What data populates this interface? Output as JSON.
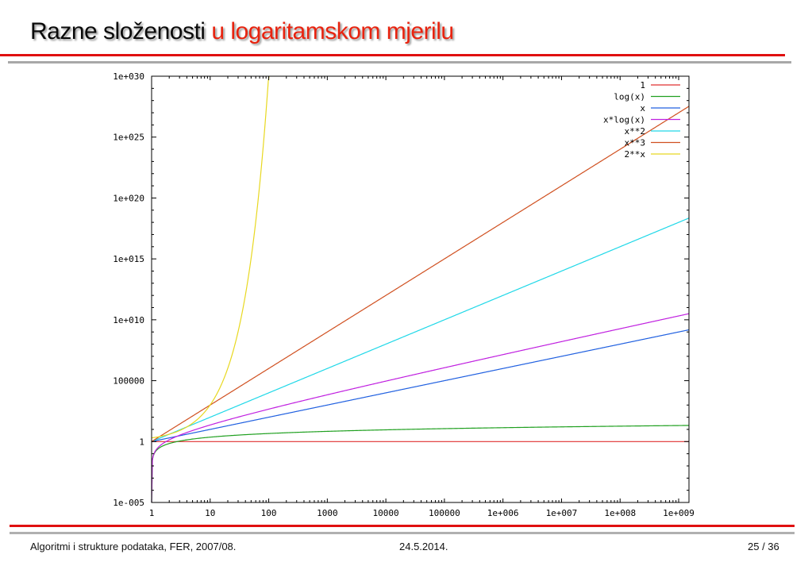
{
  "slide": {
    "title_part1": "Razne složenosti",
    "title_part2": "u logaritamskom mjerilu",
    "footer_left": "Algoritmi i strukture podataka, FER, 2007/08.",
    "footer_center": "24.5.2014.",
    "footer_right": "25 / 36"
  },
  "chart_data": {
    "type": "line",
    "x_scale": "log",
    "y_scale": "log",
    "xlim": [
      1,
      1500000000
    ],
    "ylim": [
      1e-05,
      1e+30
    ],
    "x_ticks": [
      {
        "value": 1,
        "label": "1"
      },
      {
        "value": 10,
        "label": "10"
      },
      {
        "value": 100,
        "label": "100"
      },
      {
        "value": 1000,
        "label": "1000"
      },
      {
        "value": 10000,
        "label": "10000"
      },
      {
        "value": 100000,
        "label": "100000"
      },
      {
        "value": 1000000,
        "label": "1e+006"
      },
      {
        "value": 10000000,
        "label": "1e+007"
      },
      {
        "value": 100000000,
        "label": "1e+008"
      },
      {
        "value": 1000000000,
        "label": "1e+009"
      }
    ],
    "y_ticks": [
      {
        "value": 1e+30,
        "label": "1e+030"
      },
      {
        "value": 1e+25,
        "label": "1e+025"
      },
      {
        "value": 1e+20,
        "label": "1e+020"
      },
      {
        "value": 1000000000000000.0,
        "label": "1e+015"
      },
      {
        "value": 10000000000.0,
        "label": "1e+010"
      },
      {
        "value": 100000,
        "label": "100000"
      },
      {
        "value": 1,
        "label": "1"
      },
      {
        "value": 1e-05,
        "label": "1e-005"
      }
    ],
    "legend_position": "top-right",
    "series": [
      {
        "name": "1",
        "fn": "const",
        "color": "#e03030"
      },
      {
        "name": "log(x)",
        "fn": "log",
        "color": "#20a020"
      },
      {
        "name": "x",
        "fn": "x",
        "color": "#2060e0"
      },
      {
        "name": "x*log(x)",
        "fn": "xlogx",
        "color": "#c020e0"
      },
      {
        "name": "x**2",
        "fn": "x2",
        "color": "#20d8e8"
      },
      {
        "name": "x**3",
        "fn": "x3",
        "color": "#d05020"
      },
      {
        "name": "2**x",
        "fn": "pow2",
        "color": "#e8d820"
      }
    ]
  }
}
